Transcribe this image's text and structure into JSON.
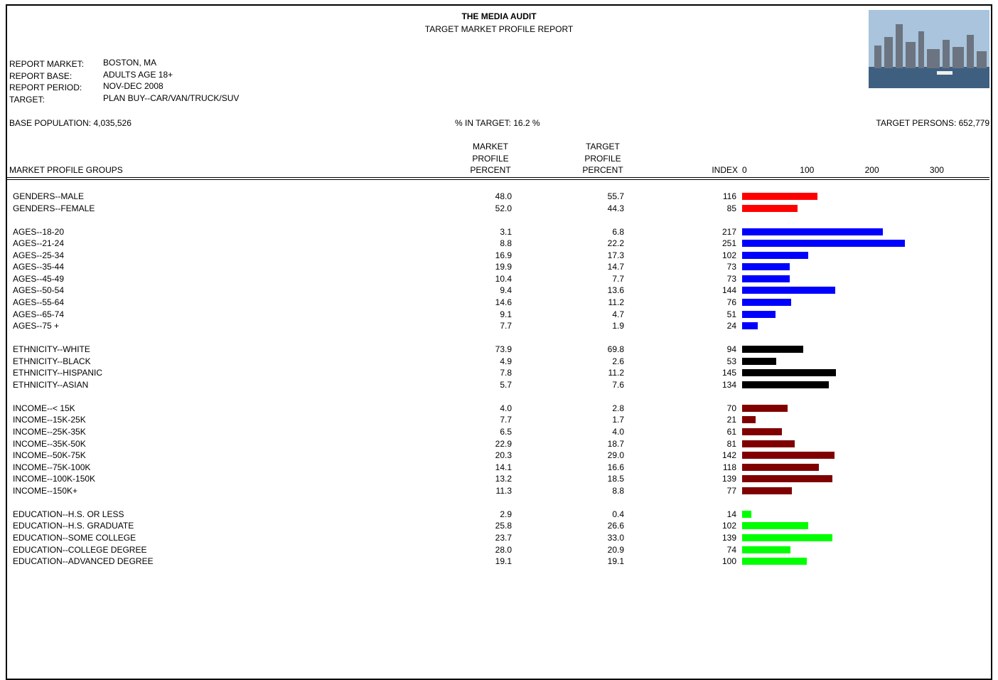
{
  "header": {
    "title": "THE MEDIA AUDIT",
    "subtitle": "TARGET MARKET PROFILE REPORT"
  },
  "report_info": [
    {
      "label": "REPORT MARKET:",
      "value": "BOSTON, MA"
    },
    {
      "label": "REPORT BASE:",
      "value": "ADULTS AGE 18+"
    },
    {
      "label": "REPORT PERIOD:",
      "value": "NOV-DEC 2008"
    },
    {
      "label": "TARGET:",
      "value": "PLAN BUY--CAR/VAN/TRUCK/SUV"
    }
  ],
  "summary": {
    "base_population": "BASE POPULATION: 4,035,526",
    "pct_in_target": "% IN TARGET: 16.2 %",
    "target_persons": "TARGET PERSONS: 652,779"
  },
  "table": {
    "columns": {
      "group": "MARKET PROFILE GROUPS",
      "market": [
        "MARKET",
        "PROFILE",
        "PERCENT"
      ],
      "target": [
        "TARGET",
        "PROFILE",
        "PERCENT"
      ],
      "index": "INDEX"
    },
    "index_ticks": [
      0,
      100,
      200,
      300
    ],
    "groups": [
      {
        "color": "#ff0000",
        "rows": [
          [
            "GENDERS--MALE",
            "48.0",
            "55.7",
            116
          ],
          [
            "GENDERS--FEMALE",
            "52.0",
            "44.3",
            85
          ]
        ]
      },
      {
        "color": "#0000ff",
        "rows": [
          [
            "AGES--18-20",
            "3.1",
            "6.8",
            217
          ],
          [
            "AGES--21-24",
            "8.8",
            "22.2",
            251
          ],
          [
            "AGES--25-34",
            "16.9",
            "17.3",
            102
          ],
          [
            "AGES--35-44",
            "19.9",
            "14.7",
            73
          ],
          [
            "AGES--45-49",
            "10.4",
            "7.7",
            73
          ],
          [
            "AGES--50-54",
            "9.4",
            "13.6",
            144
          ],
          [
            "AGES--55-64",
            "14.6",
            "11.2",
            76
          ],
          [
            "AGES--65-74",
            "9.1",
            "4.7",
            51
          ],
          [
            "AGES--75 +",
            "7.7",
            "1.9",
            24
          ]
        ]
      },
      {
        "color": "#000000",
        "rows": [
          [
            "ETHNICITY--WHITE",
            "73.9",
            "69.8",
            94
          ],
          [
            "ETHNICITY--BLACK",
            "4.9",
            "2.6",
            53
          ],
          [
            "ETHNICITY--HISPANIC",
            "7.8",
            "11.2",
            145
          ],
          [
            "ETHNICITY--ASIAN",
            "5.7",
            "7.6",
            134
          ]
        ]
      },
      {
        "color": "#800000",
        "rows": [
          [
            "INCOME--< 15K",
            "4.0",
            "2.8",
            70
          ],
          [
            "INCOME--15K-25K",
            "7.7",
            "1.7",
            21
          ],
          [
            "INCOME--25K-35K",
            "6.5",
            "4.0",
            61
          ],
          [
            "INCOME--35K-50K",
            "22.9",
            "18.7",
            81
          ],
          [
            "INCOME--50K-75K",
            "20.3",
            "29.0",
            142
          ],
          [
            "INCOME--75K-100K",
            "14.1",
            "16.6",
            118
          ],
          [
            "INCOME--100K-150K",
            "13.2",
            "18.5",
            139
          ],
          [
            "INCOME--150K+",
            "11.3",
            "8.8",
            77
          ]
        ]
      },
      {
        "color": "#00ff00",
        "rows": [
          [
            "EDUCATION--H.S. OR LESS",
            "2.9",
            "0.4",
            14
          ],
          [
            "EDUCATION--H.S. GRADUATE",
            "25.8",
            "26.6",
            102
          ],
          [
            "EDUCATION--SOME COLLEGE",
            "23.7",
            "33.0",
            139
          ],
          [
            "EDUCATION--COLLEGE DEGREE",
            "28.0",
            "20.9",
            74
          ],
          [
            "EDUCATION--ADVANCED DEGREE",
            "19.1",
            "19.1",
            100
          ]
        ]
      }
    ]
  }
}
